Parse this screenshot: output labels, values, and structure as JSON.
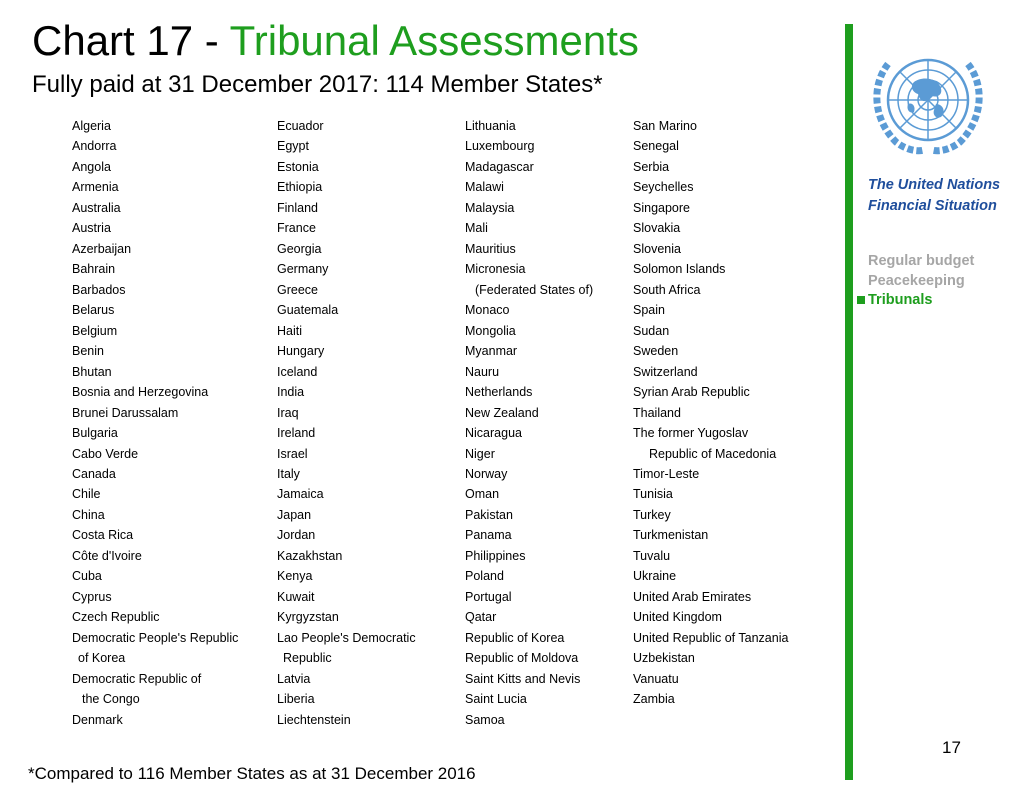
{
  "header": {
    "title_prefix": "Chart 17 - ",
    "title_highlight": "Tribunal Assessments",
    "subtitle": "Fully paid at 31 December 2017: 114 Member States*"
  },
  "columns": [
    [
      "Algeria",
      "Andorra",
      "Angola",
      "Armenia",
      "Australia",
      "Austria",
      "Azerbaijan",
      "Bahrain",
      "Barbados",
      "Belarus",
      "Belgium",
      "Benin",
      "Bhutan",
      "Bosnia and Herzegovina",
      "Brunei Darussalam",
      "Bulgaria",
      "Cabo Verde",
      "Canada",
      "Chile",
      "China",
      "Costa Rica",
      "Côte d'Ivoire",
      "Cuba",
      "Cyprus",
      "Czech Republic",
      "Democratic People's Republic",
      "of Korea",
      "Democratic Republic of",
      "the Congo",
      "Denmark"
    ],
    [
      "Ecuador",
      "Egypt",
      "Estonia",
      "Ethiopia",
      "Finland",
      "France",
      "Georgia",
      "Germany",
      "Greece",
      "Guatemala",
      "Haiti",
      "Hungary",
      "Iceland",
      "India",
      "Iraq",
      "Ireland",
      "Israel",
      "Italy",
      "Jamaica",
      "Japan",
      "Jordan",
      "Kazakhstan",
      "Kenya",
      "Kuwait",
      "Kyrgyzstan",
      "Lao People's Democratic",
      "Republic",
      "Latvia",
      "Liberia",
      "Liechtenstein"
    ],
    [
      "Lithuania",
      "Luxembourg",
      "Madagascar",
      "Malawi",
      "Malaysia",
      "Mali",
      "Mauritius",
      "Micronesia",
      "(Federated States of)",
      "Monaco",
      "Mongolia",
      "Myanmar",
      "Nauru",
      "Netherlands",
      "New Zealand",
      "Nicaragua",
      "Niger",
      "Norway",
      "Oman",
      "Pakistan",
      "Panama",
      "Philippines",
      "Poland",
      "Portugal",
      "Qatar",
      "Republic of Korea",
      "Republic of Moldova",
      "Saint Kitts and Nevis",
      "Saint Lucia",
      "Samoa"
    ],
    [
      "San Marino",
      "Senegal",
      "Serbia",
      "Seychelles",
      "Singapore",
      "Slovakia",
      "Slovenia",
      "Solomon Islands",
      "South Africa",
      "Spain",
      "Sudan",
      "Sweden",
      "Switzerland",
      "Syrian Arab Republic",
      "Thailand",
      "The former Yugoslav",
      "Republic of Macedonia",
      "Timor-Leste",
      "Tunisia",
      "Turkey",
      "Turkmenistan",
      "Tuvalu",
      "Ukraine",
      "United Arab Emirates",
      "United Kingdom",
      "United Republic of Tanzania",
      "Uzbekistan",
      "Vanuatu",
      "Zambia"
    ]
  ],
  "sidebar": {
    "title_line1": "The United Nations",
    "title_line2": "Financial Situation",
    "nav": [
      "Regular budget",
      "Peacekeeping",
      "Tribunals"
    ]
  },
  "footnote": "*Compared to 116 Member States as at 31 December 2016",
  "page_number": "17",
  "colors": {
    "accent_green": "#1e9e1e",
    "sidebar_blue": "#1f4e9c",
    "muted_gray": "#a6a6a6",
    "un_blue": "#5b9bd5"
  }
}
